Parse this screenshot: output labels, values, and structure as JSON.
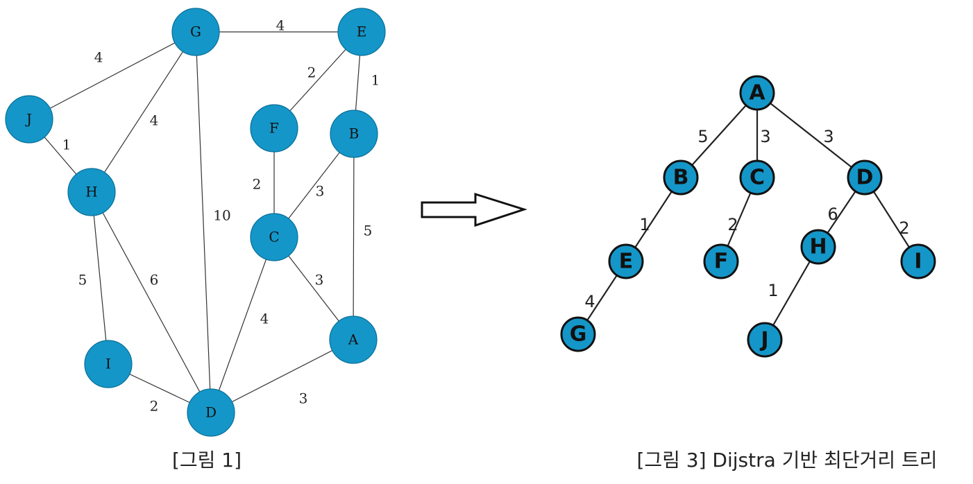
{
  "figure1": {
    "caption": "[그림 1]",
    "nodes": [
      {
        "id": "G",
        "label": "G"
      },
      {
        "id": "E",
        "label": "E"
      },
      {
        "id": "J",
        "label": "J"
      },
      {
        "id": "F",
        "label": "F"
      },
      {
        "id": "B",
        "label": "B"
      },
      {
        "id": "H",
        "label": "H"
      },
      {
        "id": "C",
        "label": "C"
      },
      {
        "id": "A",
        "label": "A"
      },
      {
        "id": "I",
        "label": "I"
      },
      {
        "id": "D",
        "label": "D"
      }
    ],
    "edges": [
      {
        "from": "G",
        "to": "E",
        "weight": "4"
      },
      {
        "from": "G",
        "to": "J",
        "weight": "4"
      },
      {
        "from": "G",
        "to": "H",
        "weight": "4"
      },
      {
        "from": "G",
        "to": "D",
        "weight": "10"
      },
      {
        "from": "E",
        "to": "F",
        "weight": "2"
      },
      {
        "from": "E",
        "to": "B",
        "weight": "1"
      },
      {
        "from": "J",
        "to": "H",
        "weight": "1"
      },
      {
        "from": "F",
        "to": "C",
        "weight": "2"
      },
      {
        "from": "B",
        "to": "C",
        "weight": "3"
      },
      {
        "from": "B",
        "to": "A",
        "weight": "5"
      },
      {
        "from": "H",
        "to": "I",
        "weight": "5"
      },
      {
        "from": "H",
        "to": "D",
        "weight": "6"
      },
      {
        "from": "C",
        "to": "A",
        "weight": "3"
      },
      {
        "from": "C",
        "to": "D",
        "weight": "4"
      },
      {
        "from": "I",
        "to": "D",
        "weight": "2"
      },
      {
        "from": "D",
        "to": "A",
        "weight": "3"
      }
    ]
  },
  "figure3": {
    "caption": "[그림 3] Dijstra 기반 최단거리 트리",
    "nodes": [
      {
        "id": "A",
        "label": "A"
      },
      {
        "id": "B",
        "label": "B"
      },
      {
        "id": "C",
        "label": "C"
      },
      {
        "id": "D",
        "label": "D"
      },
      {
        "id": "E",
        "label": "E"
      },
      {
        "id": "F",
        "label": "F"
      },
      {
        "id": "H",
        "label": "H"
      },
      {
        "id": "I",
        "label": "I"
      },
      {
        "id": "G",
        "label": "G"
      },
      {
        "id": "J",
        "label": "J"
      }
    ],
    "edges": [
      {
        "from": "A",
        "to": "B",
        "weight": "5"
      },
      {
        "from": "A",
        "to": "C",
        "weight": "3"
      },
      {
        "from": "A",
        "to": "D",
        "weight": "3"
      },
      {
        "from": "B",
        "to": "E",
        "weight": "1"
      },
      {
        "from": "C",
        "to": "F",
        "weight": "2"
      },
      {
        "from": "D",
        "to": "H",
        "weight": "6"
      },
      {
        "from": "D",
        "to": "I",
        "weight": "2"
      },
      {
        "from": "E",
        "to": "G",
        "weight": "4"
      },
      {
        "from": "H",
        "to": "J",
        "weight": "1"
      }
    ]
  }
}
